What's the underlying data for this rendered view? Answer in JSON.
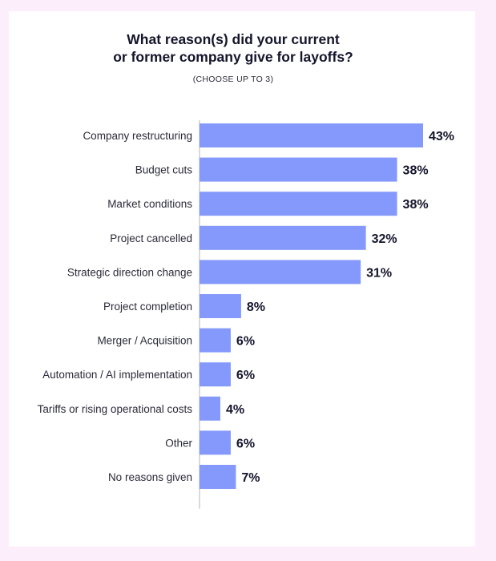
{
  "chart_data": {
    "type": "bar",
    "orientation": "horizontal",
    "title": [
      "What reason(s) did your current",
      "or former company give for layoffs?"
    ],
    "subtitle": "(CHOOSE UP TO 3)",
    "categories": [
      "Company restructuring",
      "Budget cuts",
      "Market conditions",
      "Project cancelled",
      "Strategic direction change",
      "Project completion",
      "Merger / Acquisition",
      "Automation / AI implementation",
      "Tariffs or rising operational costs",
      "Other",
      "No reasons given"
    ],
    "values": [
      43,
      38,
      38,
      32,
      31,
      8,
      6,
      6,
      4,
      6,
      7
    ],
    "value_labels": [
      "43%",
      "38%",
      "38%",
      "32%",
      "31%",
      "8%",
      "6%",
      "6%",
      "4%",
      "6%",
      "7%"
    ],
    "unit": "%",
    "xlim": [
      0,
      43
    ],
    "grid": false,
    "bar_color": "#8499fb"
  }
}
